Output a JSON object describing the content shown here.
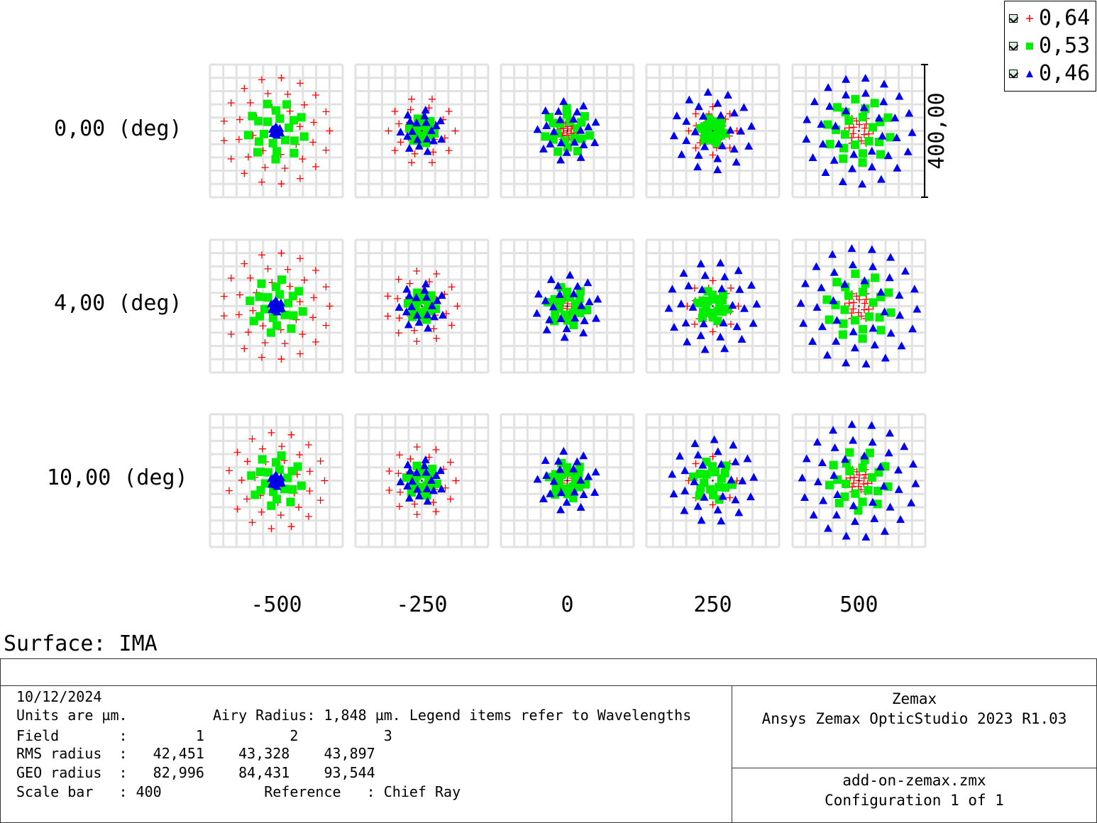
{
  "chart_data": {
    "type": "scatter",
    "title": "",
    "fields": [
      "0,00 (deg)",
      "4,00 (deg)",
      "10,00 (deg)"
    ],
    "defocus_labels": [
      "-500",
      "-250",
      "0",
      "250",
      "500"
    ],
    "scale_bar_label": "400,00",
    "series": [
      {
        "name": "0,64",
        "marker": "plus",
        "color": "#ff0000"
      },
      {
        "name": "0,53",
        "marker": "square",
        "color": "#00ee00"
      },
      {
        "name": "0,46",
        "marker": "triangle",
        "color": "#0000ee"
      }
    ],
    "spot_radii": [
      [
        [
          75,
          40,
          6
        ],
        [
          47,
          18,
          30
        ],
        [
          14,
          32,
          42
        ],
        [
          34,
          18,
          55
        ],
        [
          20,
          45,
          75
        ]
      ],
      [
        [
          75,
          38,
          8
        ],
        [
          50,
          20,
          32
        ],
        [
          16,
          28,
          44
        ],
        [
          36,
          22,
          62
        ],
        [
          20,
          46,
          82
        ]
      ],
      [
        [
          68,
          36,
          8
        ],
        [
          48,
          22,
          30
        ],
        [
          18,
          26,
          42
        ],
        [
          34,
          28,
          58
        ],
        [
          18,
          42,
          80
        ]
      ]
    ],
    "grid": true
  },
  "legend": [
    {
      "label": "0,64",
      "checked": true
    },
    {
      "label": "0,53",
      "checked": true
    },
    {
      "label": "0,46",
      "checked": true
    }
  ],
  "surface": "Surface: IMA",
  "info": {
    "date": "10/12/2024",
    "units_line": "Units are µm.          Airy Radius: 1,848 µm. Legend items refer to Wavelengths",
    "field_line": "Field       :        1          2          3",
    "rms_line": "RMS radius  :   42,451    43,328    43,897",
    "geo_line": "GEO radius  :   82,996    84,431    93,544",
    "scale_line": "Scale bar   : 400            Reference   : Chief Ray"
  },
  "brand": {
    "company": "Zemax",
    "product": "Ansys Zemax OpticStudio 2023 R1.03"
  },
  "file": {
    "name": "add-on-zemax.zmx",
    "config": "Configuration 1 of 1"
  }
}
